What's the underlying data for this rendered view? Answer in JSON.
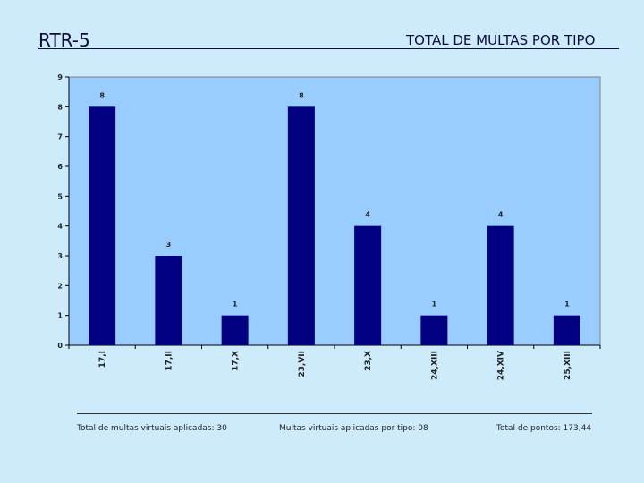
{
  "header": {
    "code": "RTR-5",
    "title": "TOTAL DE MULTAS POR TIPO"
  },
  "chart_data": {
    "type": "bar",
    "categories": [
      "17,I",
      "17,II",
      "17,X",
      "23,VII",
      "23,X",
      "24,XIII",
      "24,XIV",
      "25,XIII"
    ],
    "values": [
      8,
      3,
      1,
      8,
      4,
      1,
      4,
      1
    ],
    "title": "",
    "xlabel": "",
    "ylabel": "",
    "ylim": [
      0,
      9
    ],
    "yticks": [
      "0",
      "1",
      "2",
      "3",
      "4",
      "5",
      "6",
      "7",
      "8",
      "9"
    ],
    "grid": false,
    "data_labels": true,
    "colors": {
      "bar": "#000080",
      "plot_bg": "#99ccff"
    }
  },
  "footer": {
    "left": "Total de multas virtuais aplicadas: 30",
    "mid": "Multas virtuais aplicadas por tipo: 08",
    "right": "Total de pontos: 173,44"
  }
}
